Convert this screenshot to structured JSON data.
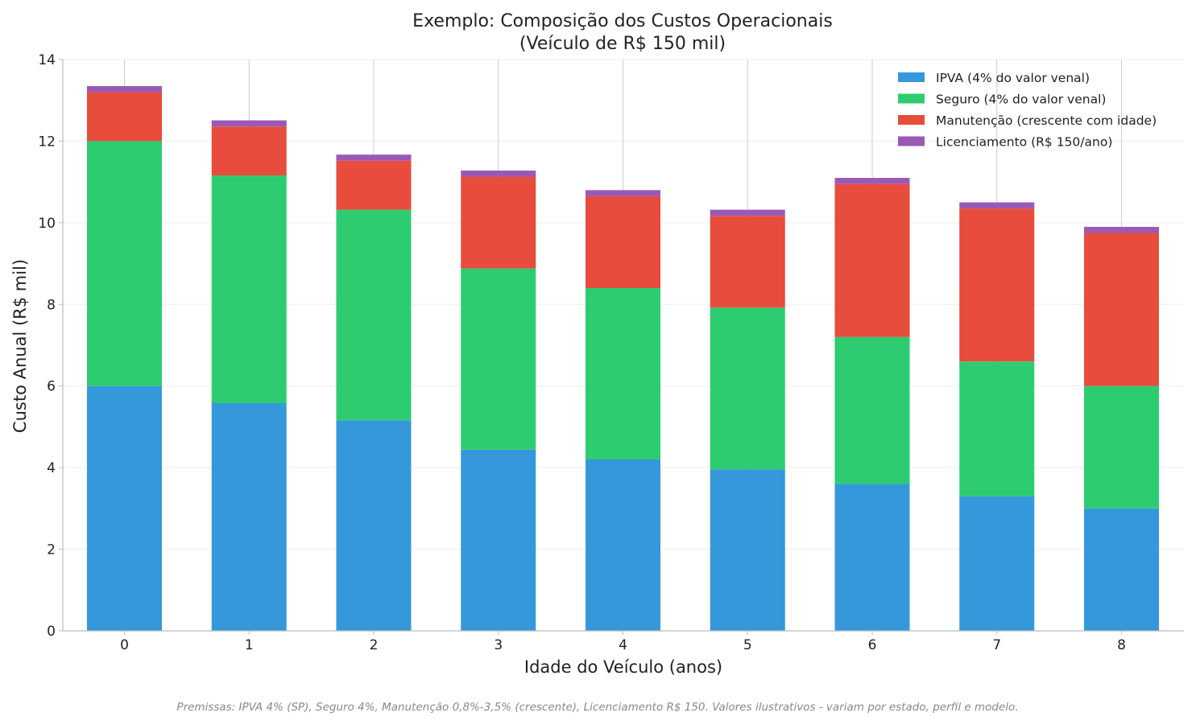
{
  "chart_data": {
    "type": "bar",
    "stacked": true,
    "title_line1": "Exemplo: Composição dos Custos Operacionais",
    "title_line2": "(Veículo de R$ 150 mil)",
    "xlabel": "Idade do Veículo (anos)",
    "ylabel": "Custo Anual (R$ mil)",
    "categories": [
      "0",
      "1",
      "2",
      "3",
      "4",
      "5",
      "6",
      "7",
      "8"
    ],
    "ylim": [
      0,
      14
    ],
    "yticks": [
      0,
      2,
      4,
      6,
      8,
      10,
      12,
      14
    ],
    "grid": true,
    "legend_position": "top-right",
    "series": [
      {
        "name": "IPVA (4% do valor venal)",
        "color": "#3598db",
        "values": [
          6.0,
          5.58,
          5.16,
          4.44,
          4.2,
          3.96,
          3.6,
          3.3,
          3.0
        ]
      },
      {
        "name": "Seguro (4% do valor venal)",
        "color": "#2ecc71",
        "values": [
          6.0,
          5.58,
          5.16,
          4.44,
          4.2,
          3.96,
          3.6,
          3.3,
          3.0
        ]
      },
      {
        "name": "Manutenção (crescente com idade)",
        "color": "#e74c3c",
        "values": [
          1.2,
          1.2,
          1.2,
          2.25,
          2.25,
          2.25,
          3.75,
          3.75,
          3.75
        ]
      },
      {
        "name": "Licenciamento (R$ 150/ano)",
        "color": "#9b59b6",
        "values": [
          0.15,
          0.15,
          0.15,
          0.15,
          0.15,
          0.15,
          0.15,
          0.15,
          0.15
        ]
      }
    ],
    "footnote": "Premissas: IPVA 4% (SP), Seguro 4%, Manutenção 0,8%-3,5% (crescente), Licenciamento R$ 150. Valores ilustrativos - variam por estado, perfil e modelo."
  }
}
